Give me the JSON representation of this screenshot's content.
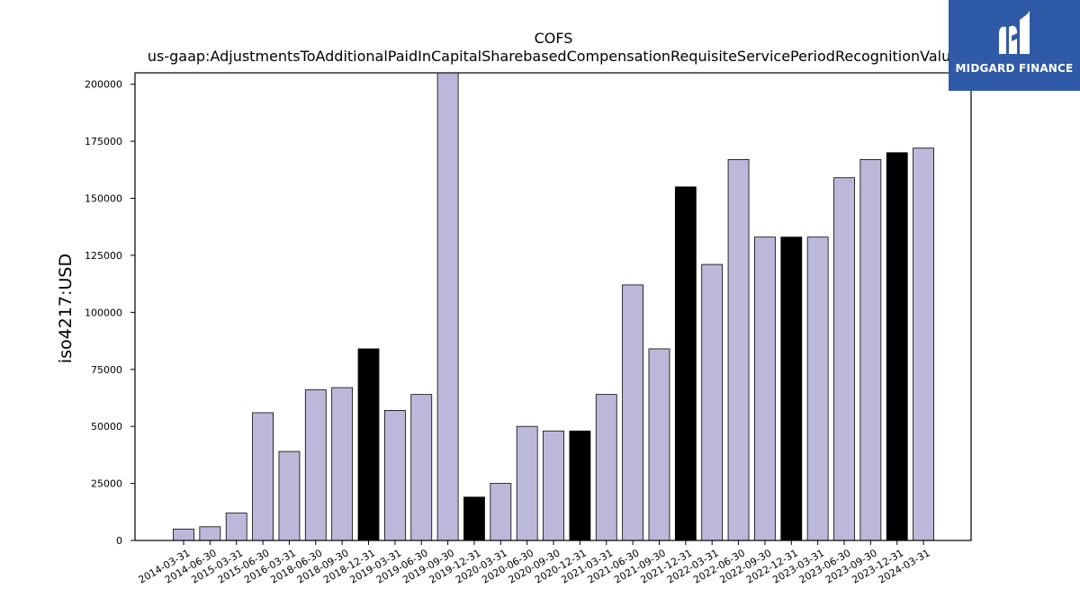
{
  "chart_data": {
    "type": "bar",
    "title": "COFS",
    "subtitle": "us-gaap:AdjustmentsToAdditionalPaidInCapitalSharebasedCompensationRequisiteServicePeriodRecognitionValue",
    "xlabel": "",
    "ylabel": "iso4217:USD",
    "ylim": [
      0,
      205000
    ],
    "yticks": [
      0,
      25000,
      50000,
      75000,
      100000,
      125000,
      150000,
      175000,
      200000
    ],
    "grid": false,
    "categories": [
      "2014-03-31",
      "2014-06-30",
      "2015-03-31",
      "2015-06-30",
      "2016-03-31",
      "2018-06-30",
      "2018-09-30",
      "2018-12-31",
      "2019-03-31",
      "2019-06-30",
      "2019-09-30",
      "2019-12-31",
      "2020-03-31",
      "2020-06-30",
      "2020-09-30",
      "2020-12-31",
      "2021-03-31",
      "2021-06-30",
      "2021-09-30",
      "2021-12-31",
      "2022-03-31",
      "2022-06-30",
      "2022-09-30",
      "2022-12-31",
      "2023-03-31",
      "2023-06-30",
      "2023-09-30",
      "2023-12-31",
      "2024-03-31"
    ],
    "values": [
      5000,
      6000,
      12000,
      56000,
      39000,
      66000,
      67000,
      84000,
      57000,
      64000,
      205000,
      19000,
      25000,
      50000,
      48000,
      48000,
      64000,
      112000,
      84000,
      155000,
      121000,
      167000,
      133000,
      133000,
      133000,
      159000,
      167000,
      170000,
      172000
    ],
    "highlighted": [
      false,
      false,
      false,
      false,
      false,
      false,
      false,
      true,
      false,
      false,
      false,
      true,
      false,
      false,
      false,
      true,
      false,
      false,
      false,
      true,
      false,
      false,
      false,
      true,
      false,
      false,
      false,
      true,
      false
    ],
    "colors": {
      "bar": "#bcb8da",
      "highlight": "#000000",
      "edge": "#000000"
    }
  },
  "logo": {
    "text": "MIDGARD FINANCE",
    "background": "#2f5aa8"
  }
}
